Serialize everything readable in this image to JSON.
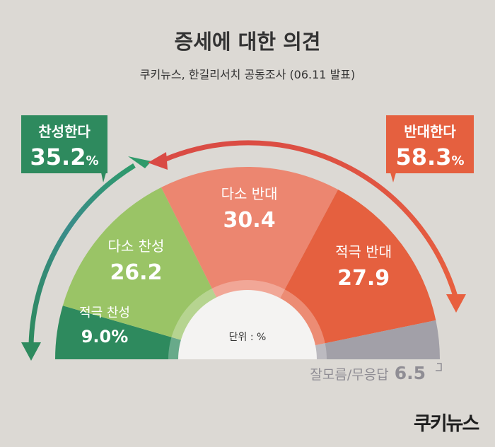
{
  "title": "증세에 대한 의견",
  "subtitle": "쿠키뉴스, 한길리서치 공동조사 (06.11 발표)",
  "unit_label": "단위 : %",
  "logo_text": "쿠키뉴스",
  "colors": {
    "strong_agree": "#2e8a5e",
    "somewhat_agree": "#9ac466",
    "somewhat_oppose": "#ec8670",
    "strong_oppose": "#e5603f",
    "dont_know": "#a2a0a8",
    "background": "#dcd9d4"
  },
  "chart_data": {
    "type": "pie",
    "shape": "semicircle",
    "categories": [
      "적극 찬성",
      "다소 찬성",
      "다소 반대",
      "적극 반대",
      "잘모름/무응답"
    ],
    "values": [
      9.0,
      26.2,
      30.4,
      27.9,
      6.5
    ],
    "value_labels": [
      "9.0%",
      "26.2",
      "30.4",
      "27.9",
      "6.5"
    ],
    "groups": [
      {
        "label": "찬성한다",
        "value_text": "35.2",
        "unit": "%",
        "members": [
          "적극 찬성",
          "다소 찬성"
        ]
      },
      {
        "label": "반대한다",
        "value_text": "58.3",
        "unit": "%",
        "members": [
          "다소 반대",
          "적극 반대"
        ]
      }
    ]
  }
}
